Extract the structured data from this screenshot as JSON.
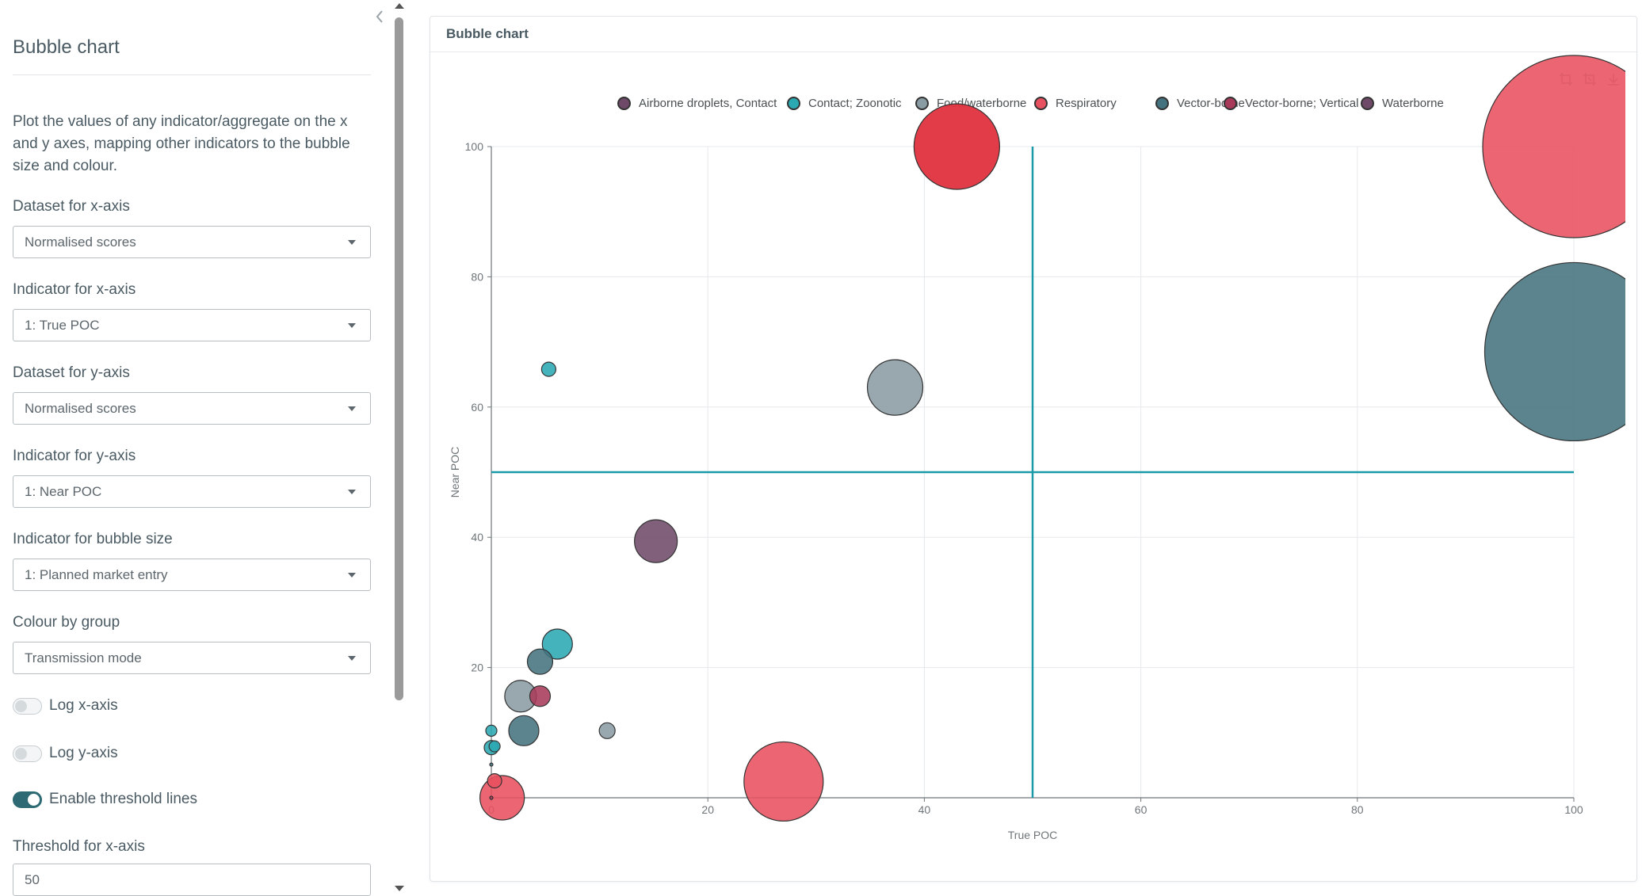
{
  "sidebar": {
    "collapse_icon": "chevron-left-icon",
    "title": "Bubble chart",
    "description": "Plot the values of any indicator/aggregate on the x and y axes, mapping other indicators to the bubble size and colour.",
    "fields": {
      "x_dataset": {
        "label": "Dataset for x-axis",
        "value": "Normalised scores"
      },
      "x_indicator": {
        "label": "Indicator for x-axis",
        "value": "1: True POC"
      },
      "y_dataset": {
        "label": "Dataset for y-axis",
        "value": "Normalised scores"
      },
      "y_indicator": {
        "label": "Indicator for y-axis",
        "value": "1: Near POC"
      },
      "size_indicator": {
        "label": "Indicator for bubble size",
        "value": "1: Planned market entry"
      },
      "colour_group": {
        "label": "Colour by group",
        "value": "Transmission mode"
      }
    },
    "toggles": {
      "log_x": {
        "label": "Log x-axis",
        "on": false
      },
      "log_y": {
        "label": "Log y-axis",
        "on": false
      },
      "threshold": {
        "label": "Enable threshold lines",
        "on": true
      }
    },
    "threshold_x": {
      "label": "Threshold for x-axis",
      "value": "50"
    }
  },
  "card": {
    "title": "Bubble chart",
    "toolbox": [
      "zoom-icon",
      "zoom-reset-icon",
      "download-icon"
    ]
  },
  "chart_data": {
    "type": "scatter",
    "xlabel": "True POC",
    "ylabel": "Near POC",
    "xlim": [
      0,
      100
    ],
    "ylim": [
      0,
      100
    ],
    "xticks": [
      "0",
      "20",
      "40",
      "60",
      "80",
      "100"
    ],
    "yticks": [
      "20",
      "40",
      "60",
      "80",
      "100"
    ],
    "grid": true,
    "legend_position": "top",
    "threshold_lines": {
      "x": 50,
      "y": 50,
      "color": "#1a9aa8"
    },
    "series": [
      {
        "name": "Airborne droplets, Contact",
        "color": "#6e4a68",
        "points": []
      },
      {
        "name": "Contact; Zoonotic",
        "color": "#2aa9b3",
        "points": [
          {
            "x": 5.3,
            "y": 65.8,
            "size": 18
          },
          {
            "x": 6.1,
            "y": 23.6,
            "size": 38
          },
          {
            "x": 0,
            "y": 10.3,
            "size": 14
          },
          {
            "x": 0,
            "y": 7.7,
            "size": 18
          },
          {
            "x": 0.3,
            "y": 7.9,
            "size": 14
          }
        ]
      },
      {
        "name": "Food/waterborne",
        "color": "#8a9ca3",
        "points": [
          {
            "x": 37.3,
            "y": 63.0,
            "size": 70
          },
          {
            "x": 2.7,
            "y": 15.6,
            "size": 40
          },
          {
            "x": 10.7,
            "y": 10.3,
            "size": 20
          }
        ]
      },
      {
        "name": "Respiratory",
        "color": "#e8515f",
        "points": [
          {
            "x": 100,
            "y": 100,
            "size": 230
          },
          {
            "x": 27.0,
            "y": 2.5,
            "size": 100
          },
          {
            "x": 1.0,
            "y": 0,
            "size": 56
          },
          {
            "x": 0.3,
            "y": 2.6,
            "size": 18
          }
        ]
      },
      {
        "name": "Vector-borne",
        "color": "#44737f",
        "points": [
          {
            "x": 100,
            "y": 68.5,
            "size": 225
          },
          {
            "x": 4.5,
            "y": 20.9,
            "size": 32
          },
          {
            "x": 3.0,
            "y": 10.3,
            "size": 38
          },
          {
            "x": 0,
            "y": 5.1,
            "size": 4
          }
        ]
      },
      {
        "name": "Vector-borne; Vertical",
        "color": "#a83a5a",
        "points": [
          {
            "x": 4.5,
            "y": 15.6,
            "size": 26
          },
          {
            "x": 0,
            "y": 0,
            "size": 4
          }
        ]
      },
      {
        "name": "Waterborne",
        "color": "#6e4a68",
        "points": [
          {
            "x": 15.2,
            "y": 39.4,
            "size": 54
          }
        ]
      }
    ],
    "overlay_points": [
      {
        "x": 43.0,
        "y": 100,
        "size": 108,
        "color": "#e0323f",
        "series": "Respiratory"
      }
    ]
  }
}
